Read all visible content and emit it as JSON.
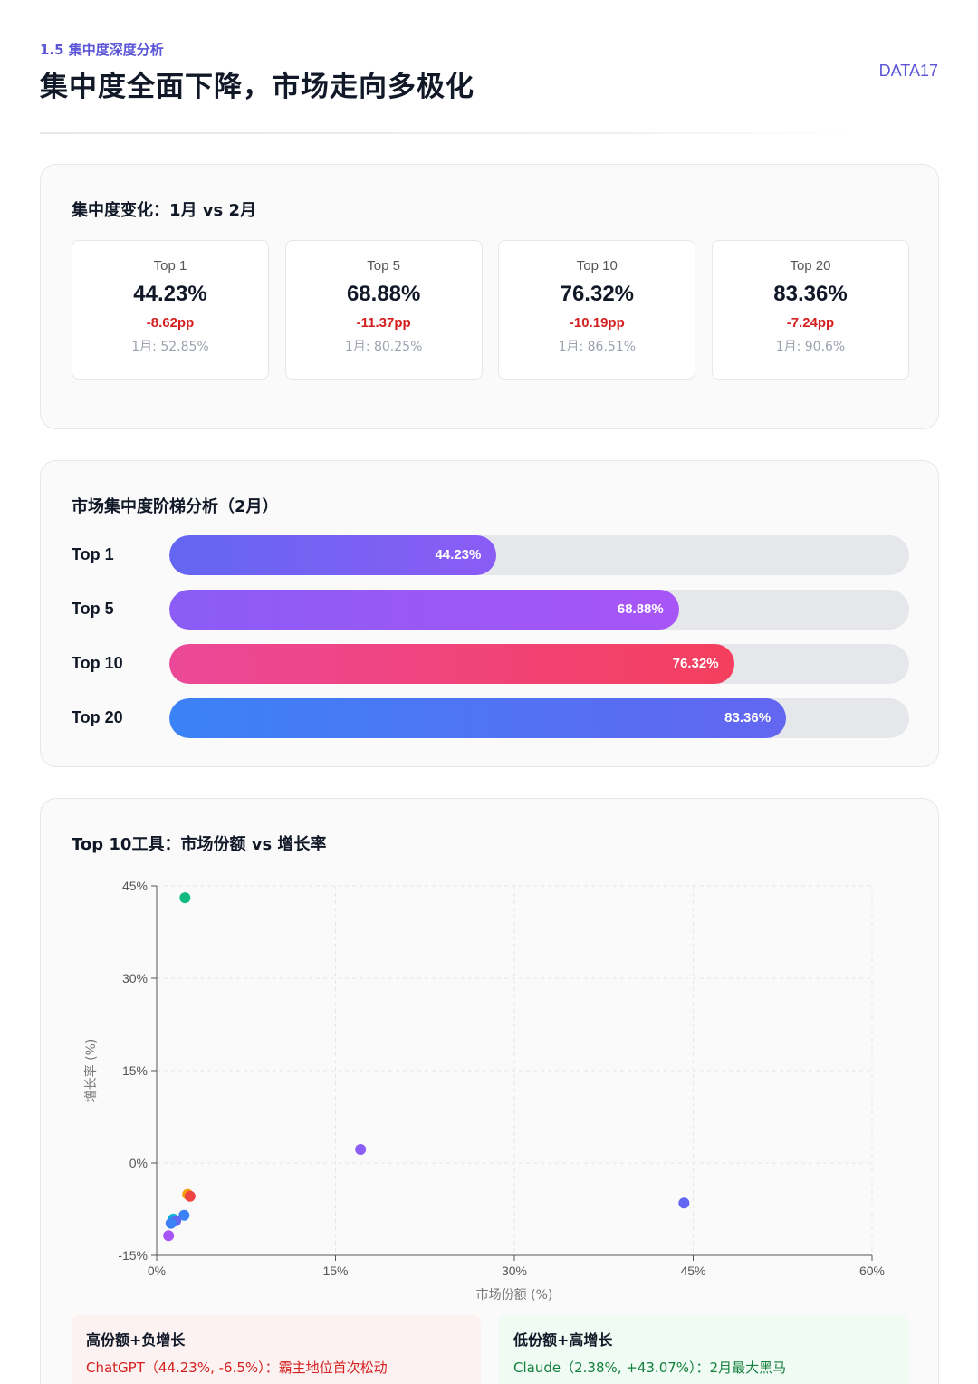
{
  "header": {
    "section_tag": "1.5 集中度深度分析",
    "title": "集中度全面下降，市场走向多极化",
    "brand": "DATA17"
  },
  "kpi_section": {
    "title": "集中度变化：1月 vs 2月",
    "cards": [
      {
        "label": "Top 1",
        "value": "44.23%",
        "delta": "-8.62pp",
        "prev": "1月: 52.85%"
      },
      {
        "label": "Top 5",
        "value": "68.88%",
        "delta": "-11.37pp",
        "prev": "1月: 80.25%"
      },
      {
        "label": "Top 10",
        "value": "76.32%",
        "delta": "-10.19pp",
        "prev": "1月: 86.51%"
      },
      {
        "label": "Top 20",
        "value": "83.36%",
        "delta": "-7.24pp",
        "prev": "1月: 90.6%"
      }
    ]
  },
  "ladder_section": {
    "title": "市场集中度阶梯分析（2月）",
    "bars": [
      {
        "label": "Top 1",
        "value": 44.23,
        "value_label": "44.23%"
      },
      {
        "label": "Top 5",
        "value": 68.88,
        "value_label": "68.88%"
      },
      {
        "label": "Top 10",
        "value": 76.32,
        "value_label": "76.32%"
      },
      {
        "label": "Top 20",
        "value": 83.36,
        "value_label": "83.36%"
      }
    ]
  },
  "scatter_section": {
    "title": "Top 10工具：市场份额 vs 增长率"
  },
  "chart_data": {
    "type": "scatter",
    "xlabel": "市场份额 (%)",
    "ylabel": "增长率 (%)",
    "xlim": [
      0,
      60
    ],
    "ylim": [
      -15,
      45
    ],
    "xticks": [
      "0%",
      "15%",
      "30%",
      "45%",
      "60%"
    ],
    "yticks": [
      "45%",
      "30%",
      "15%",
      "0%",
      "-15%"
    ],
    "grid": true,
    "points": [
      {
        "x": 2.38,
        "y": 43.07,
        "color": "#10b981"
      },
      {
        "x": 17.1,
        "y": 2.2,
        "color": "#8b5cf6"
      },
      {
        "x": 44.23,
        "y": -6.5,
        "color": "#6366f1"
      },
      {
        "x": 2.6,
        "y": -5.1,
        "color": "#f59e0b"
      },
      {
        "x": 2.8,
        "y": -5.4,
        "color": "#ef4444"
      },
      {
        "x": 2.3,
        "y": -8.5,
        "color": "#3b82f6"
      },
      {
        "x": 1.4,
        "y": -9.1,
        "color": "#06b6d4"
      },
      {
        "x": 1.6,
        "y": -9.4,
        "color": "#6366f1"
      },
      {
        "x": 1.2,
        "y": -9.8,
        "color": "#3b82f6"
      },
      {
        "x": 1.0,
        "y": -11.8,
        "color": "#a855f7"
      }
    ]
  },
  "notes": {
    "high_share": {
      "title": "高份额+负增长",
      "text": "ChatGPT（44.23%, -6.5%）：霸主地位首次松动"
    },
    "low_share": {
      "title": "低份额+高增长",
      "text": "Claude（2.38%, +43.07%）：2月最大黑马"
    }
  }
}
